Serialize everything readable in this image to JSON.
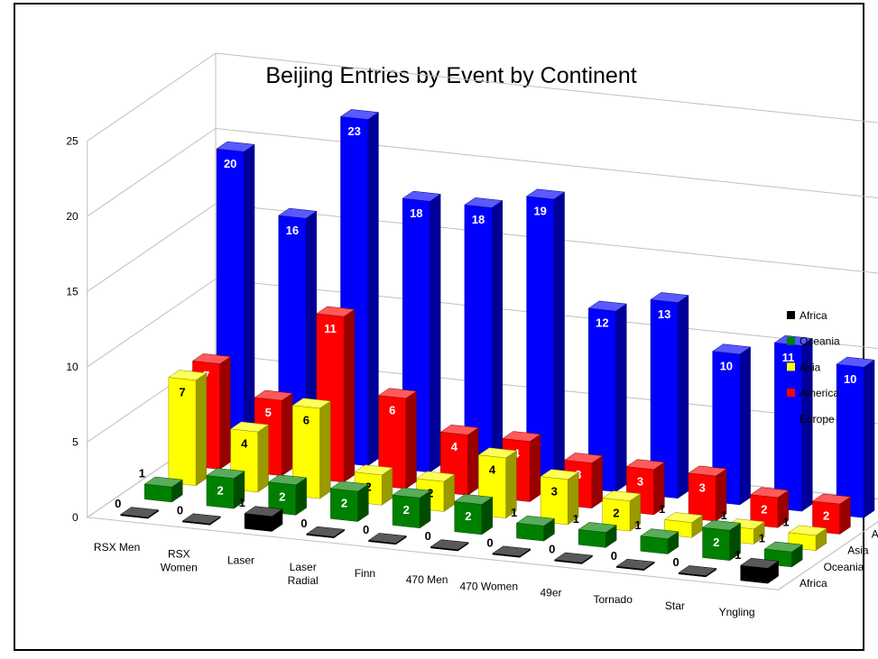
{
  "chart_data": {
    "type": "bar",
    "variant": "3d-clustered-depth",
    "title": "Beijing Entries by Event by Continent",
    "categories": [
      "RSX Men",
      "RSX Women",
      "Laser",
      "Laser Radial",
      "Finn",
      "470 Men",
      "470 Women",
      "49er",
      "Tornado",
      "Star",
      "Yngling"
    ],
    "series": [
      {
        "name": "Africa",
        "color": "#000000",
        "values": [
          0,
          0,
          1,
          0,
          0,
          0,
          0,
          0,
          0,
          0,
          1
        ]
      },
      {
        "name": "Oceania",
        "color": "#008000",
        "values": [
          1,
          2,
          2,
          2,
          2,
          2,
          1,
          1,
          1,
          2,
          1
        ]
      },
      {
        "name": "Asia",
        "color": "#ffff00",
        "values": [
          7,
          4,
          6,
          2,
          2,
          4,
          3,
          2,
          1,
          1,
          1
        ]
      },
      {
        "name": "America",
        "color": "#ff0000",
        "values": [
          7,
          5,
          11,
          6,
          4,
          4,
          3,
          3,
          3,
          2,
          2
        ]
      },
      {
        "name": "Europe",
        "color": "#0000ff",
        "values": [
          20,
          16,
          23,
          18,
          18,
          19,
          12,
          13,
          10,
          11,
          10
        ]
      }
    ],
    "ylim": [
      0,
      25
    ],
    "yticks": [
      0,
      5,
      10,
      15,
      20,
      25
    ],
    "grid": true,
    "data_labels": true,
    "legend_position": "right"
  }
}
